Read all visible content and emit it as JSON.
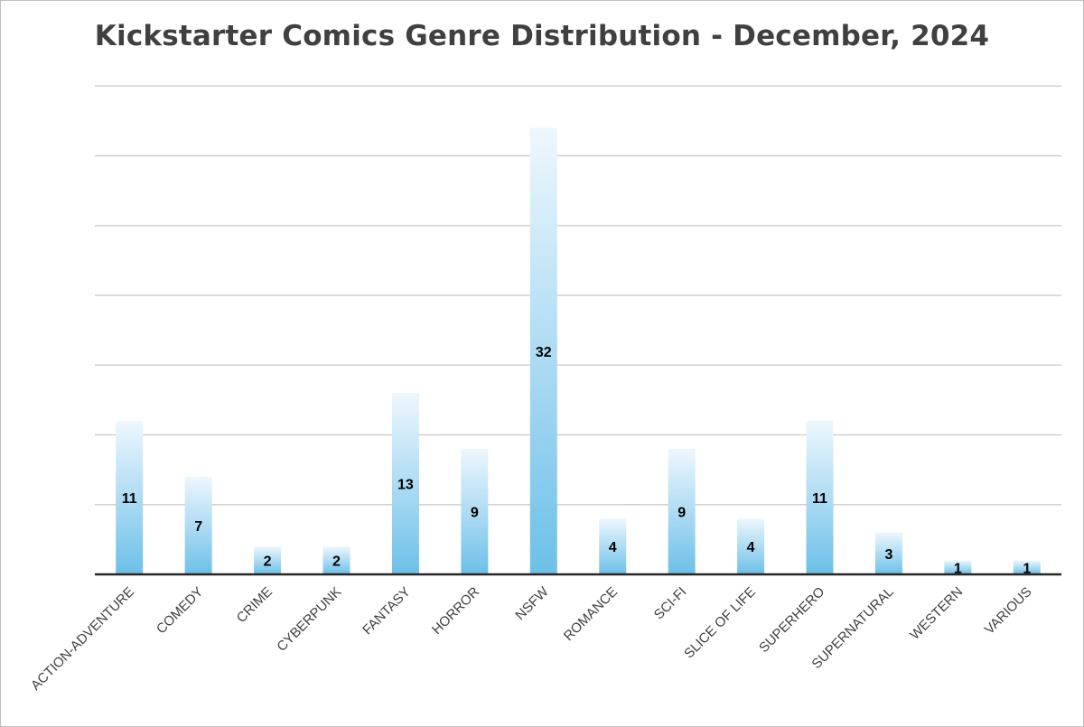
{
  "chart_data": {
    "type": "bar",
    "title": "Kickstarter Comics Genre Distribution - December, 2024",
    "categories": [
      "ACTION-ADVENTURE",
      "COMEDY",
      "CRIME",
      "CYBERPUNK",
      "FANTASY",
      "HORROR",
      "NSFW",
      "ROMANCE",
      "SCI-FI",
      "SLICE OF LIFE",
      "SUPERHERO",
      "SUPERNATURAL",
      "WESTERN",
      "VARIOUS"
    ],
    "values": [
      11,
      7,
      2,
      2,
      13,
      9,
      32,
      4,
      9,
      4,
      11,
      3,
      1,
      1
    ],
    "xlabel": "",
    "ylabel": "",
    "ylim": [
      0,
      35
    ],
    "grid": true,
    "legend": "none",
    "data_labels": true
  },
  "colors": {
    "bar_base": "#6cc0e8",
    "bar_top": "#eef7fd",
    "gridline": "#d0d0d0",
    "axis": "#262626",
    "label_text": "#000000",
    "category_text": "#404040",
    "title_text": "#404040"
  }
}
